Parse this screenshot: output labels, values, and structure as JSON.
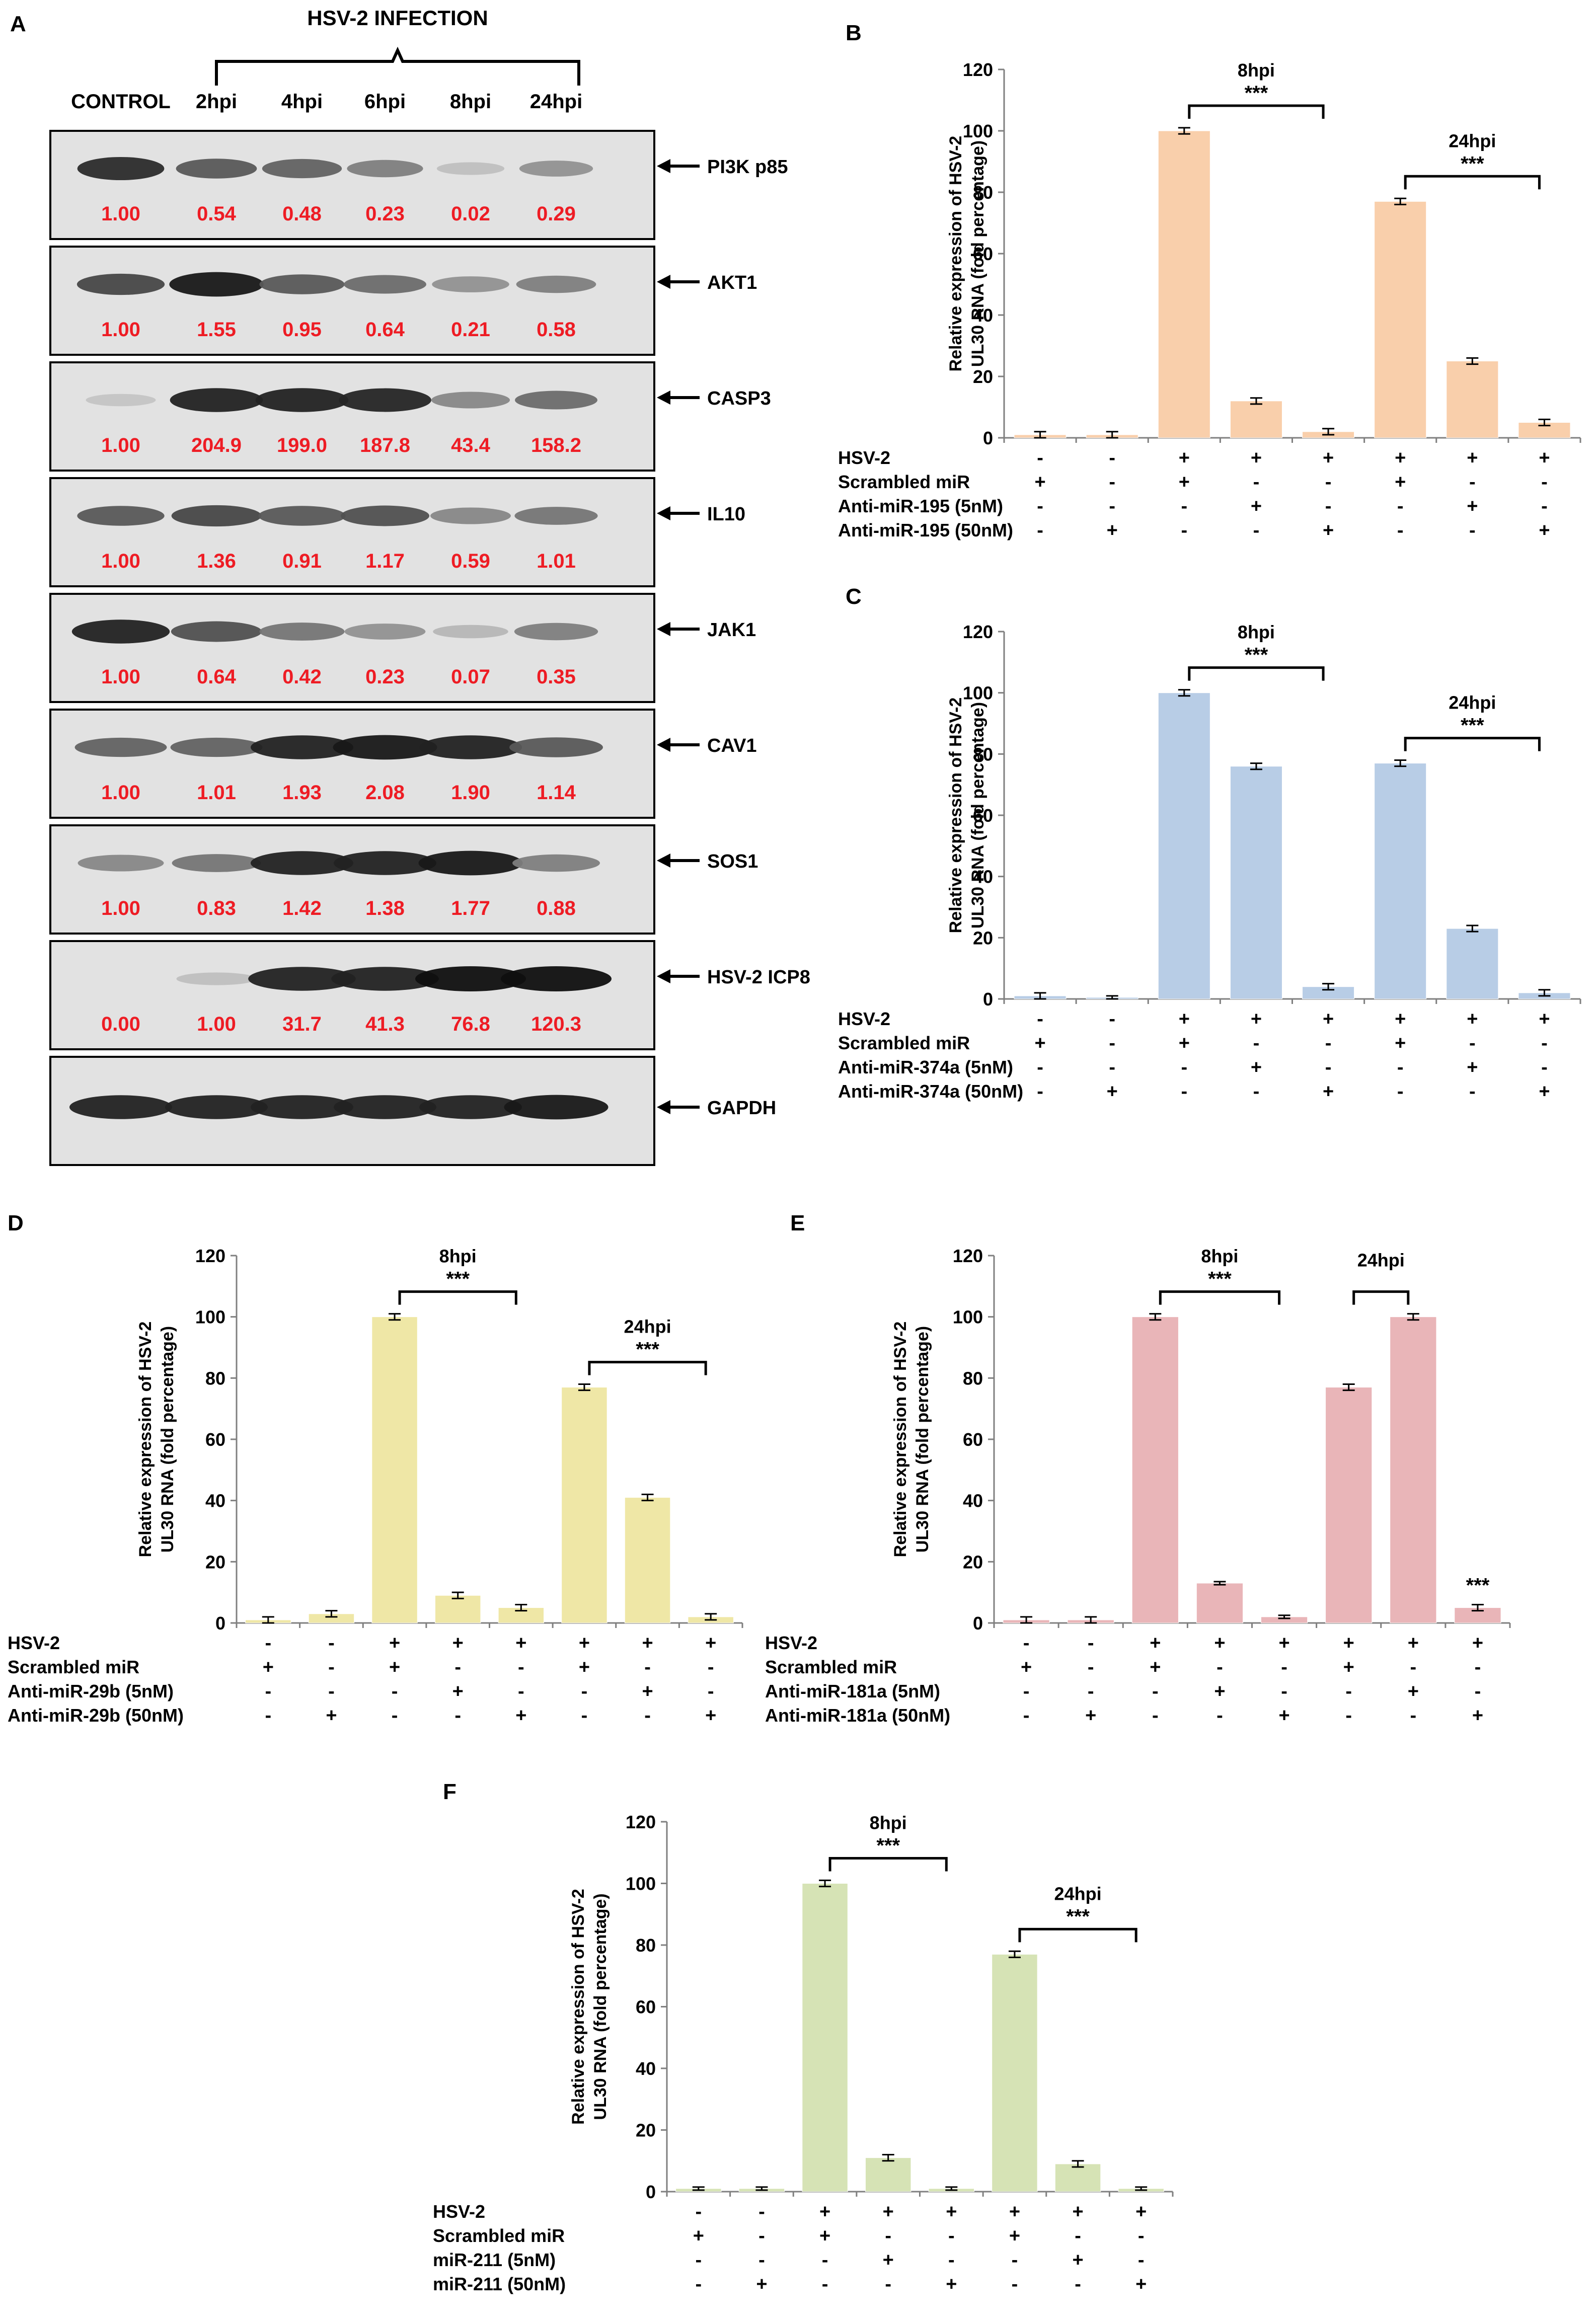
{
  "figure": {
    "panelA": {
      "label": "A",
      "header": "HSV-2 INFECTION",
      "columns": [
        "CONTROL",
        "2hpi",
        "4hpi",
        "6hpi",
        "8hpi",
        "24hpi"
      ],
      "blots": [
        {
          "protein": "PI3K  p85",
          "values": [
            "1.00",
            "0.54",
            "0.48",
            "0.23",
            "0.02",
            "0.29"
          ]
        },
        {
          "protein": "AKT1",
          "values": [
            "1.00",
            "1.55",
            "0.95",
            "0.64",
            "0.21",
            "0.58"
          ]
        },
        {
          "protein": "CASP3",
          "values": [
            "1.00",
            "204.9",
            "199.0",
            "187.8",
            "43.4",
            "158.2"
          ]
        },
        {
          "protein": "IL10",
          "values": [
            "1.00",
            "1.36",
            "0.91",
            "1.17",
            "0.59",
            "1.01"
          ]
        },
        {
          "protein": "JAK1",
          "values": [
            "1.00",
            "0.64",
            "0.42",
            "0.23",
            "0.07",
            "0.35"
          ]
        },
        {
          "protein": "CAV1",
          "values": [
            "1.00",
            "1.01",
            "1.93",
            "2.08",
            "1.90",
            "1.14"
          ]
        },
        {
          "protein": "SOS1",
          "values": [
            "1.00",
            "0.83",
            "1.42",
            "1.38",
            "1.77",
            "0.88"
          ]
        },
        {
          "protein": "HSV-2 ICP8",
          "values": [
            "0.00",
            "1.00",
            "31.7",
            "41.3",
            "76.8",
            "120.3"
          ]
        },
        {
          "protein": "GAPDH",
          "values": []
        }
      ]
    }
  },
  "chart_data": [
    {
      "panel": "B",
      "type": "bar",
      "ylabel": "Relative expression of HSV-2 UL30 RNA (fold percentage)",
      "ylabel_lines": [
        "Relative expression of HSV-2",
        "UL30 RNA (fold percentage)"
      ],
      "ylim": [
        0,
        120
      ],
      "yticks": [
        "0",
        "20",
        "40",
        "60",
        "80",
        "100",
        "120"
      ],
      "values": [
        1,
        1,
        100,
        12,
        2,
        77,
        25,
        5
      ],
      "errors": [
        1,
        1,
        1,
        1,
        1,
        1,
        1,
        1
      ],
      "color": "#f9cfab",
      "conditions": [
        {
          "name": "HSV-2",
          "signs": [
            "-",
            "-",
            "+",
            "+",
            "+",
            "+",
            "+",
            "+"
          ]
        },
        {
          "name": "Scrambled miR",
          "signs": [
            "+",
            "-",
            "+",
            "-",
            "-",
            "+",
            "-",
            "-"
          ]
        },
        {
          "name": "Anti-miR-195 (5nM)",
          "signs": [
            "-",
            "-",
            "-",
            "+",
            "-",
            "-",
            "+",
            "-"
          ]
        },
        {
          "name": "Anti-miR-195 (50nM)",
          "signs": [
            "-",
            "+",
            "-",
            "-",
            "+",
            "-",
            "-",
            "+"
          ]
        }
      ],
      "annotations": [
        {
          "label": "8hpi",
          "stars": "***",
          "from": 2,
          "to": 4
        },
        {
          "label": "24hpi",
          "stars": "***",
          "from": 5,
          "to": 7
        }
      ]
    },
    {
      "panel": "C",
      "type": "bar",
      "ylabel": "Relative expression of HSV-2 UL30 RNA (fold percentage)",
      "ylabel_lines": [
        "Relative expression of HSV-2",
        "UL30 RNA (fold percentage)"
      ],
      "ylim": [
        0,
        120
      ],
      "yticks": [
        "0",
        "20",
        "40",
        "60",
        "80",
        "100",
        "120"
      ],
      "values": [
        1,
        0.5,
        100,
        76,
        4,
        77,
        23,
        2
      ],
      "errors": [
        1,
        0.5,
        1,
        1,
        1,
        1,
        1,
        1
      ],
      "color": "#b8cde6",
      "conditions": [
        {
          "name": "HSV-2",
          "signs": [
            "-",
            "-",
            "+",
            "+",
            "+",
            "+",
            "+",
            "+"
          ]
        },
        {
          "name": "Scrambled miR",
          "signs": [
            "+",
            "-",
            "+",
            "-",
            "-",
            "+",
            "-",
            "-"
          ]
        },
        {
          "name": "Anti-miR-374a (5nM)",
          "signs": [
            "-",
            "-",
            "-",
            "+",
            "-",
            "-",
            "+",
            "-"
          ]
        },
        {
          "name": "Anti-miR-374a (50nM)",
          "signs": [
            "-",
            "+",
            "-",
            "-",
            "+",
            "-",
            "-",
            "+"
          ]
        }
      ],
      "annotations": [
        {
          "label": "8hpi",
          "stars": "***",
          "from": 2,
          "to": 4
        },
        {
          "label": "24hpi",
          "stars": "***",
          "from": 5,
          "to": 7
        }
      ]
    },
    {
      "panel": "D",
      "type": "bar",
      "ylabel": "Relative expression of HSV-2 UL30 RNA (fold percentage)",
      "ylabel_lines": [
        "Relative expression of HSV-2",
        "UL30 RNA (fold percentage)"
      ],
      "ylim": [
        0,
        120
      ],
      "yticks": [
        "0",
        "20",
        "40",
        "60",
        "80",
        "100",
        "120"
      ],
      "values": [
        1,
        3,
        100,
        9,
        5,
        77,
        41,
        2
      ],
      "errors": [
        1,
        1,
        1,
        1,
        1,
        1,
        1,
        1
      ],
      "color": "#efe7a6",
      "conditions": [
        {
          "name": "HSV-2",
          "signs": [
            "-",
            "-",
            "+",
            "+",
            "+",
            "+",
            "+",
            "+"
          ]
        },
        {
          "name": "Scrambled miR",
          "signs": [
            "+",
            "-",
            "+",
            "-",
            "-",
            "+",
            "-",
            "-"
          ]
        },
        {
          "name": "Anti-miR-29b (5nM)",
          "signs": [
            "-",
            "-",
            "-",
            "+",
            "-",
            "-",
            "+",
            "-"
          ]
        },
        {
          "name": "Anti-miR-29b (50nM)",
          "signs": [
            "-",
            "+",
            "-",
            "-",
            "+",
            "-",
            "-",
            "+"
          ]
        }
      ],
      "annotations": [
        {
          "label": "8hpi",
          "stars": "***",
          "from": 2,
          "to": 4
        },
        {
          "label": "24hpi",
          "stars": "***",
          "from": 5,
          "to": 7
        }
      ]
    },
    {
      "panel": "E",
      "type": "bar",
      "ylabel": "Relative expression of HSV-2 UL30 RNA (fold percentage)",
      "ylabel_lines": [
        "Relative expression of HSV-2",
        "UL30 RNA (fold percentage)"
      ],
      "ylim": [
        0,
        120
      ],
      "yticks": [
        "0",
        "20",
        "40",
        "60",
        "80",
        "100",
        "120"
      ],
      "values": [
        1,
        1,
        100,
        13,
        2,
        77,
        100,
        5
      ],
      "errors": [
        1,
        1,
        1,
        0.5,
        0.5,
        1,
        1,
        1
      ],
      "color": "#e9b5b8",
      "conditions": [
        {
          "name": "HSV-2",
          "signs": [
            "-",
            "-",
            "+",
            "+",
            "+",
            "+",
            "+",
            "+"
          ]
        },
        {
          "name": "Scrambled miR",
          "signs": [
            "+",
            "-",
            "+",
            "-",
            "-",
            "+",
            "-",
            "-"
          ]
        },
        {
          "name": "Anti-miR-181a (5nM)",
          "signs": [
            "-",
            "-",
            "-",
            "+",
            "-",
            "-",
            "+",
            "-"
          ]
        },
        {
          "name": "Anti-miR-181a (50nM)",
          "signs": [
            "-",
            "+",
            "-",
            "-",
            "+",
            "-",
            "-",
            "+"
          ]
        }
      ],
      "annotations": [
        {
          "label": "8hpi",
          "stars": "***",
          "from": 2,
          "to": 4
        },
        {
          "label": "24hpi",
          "stars": "",
          "from": 5,
          "to": 6
        }
      ],
      "bar_stars": [
        {
          "index": 7,
          "stars": "***"
        }
      ]
    },
    {
      "panel": "F",
      "type": "bar",
      "ylabel": "Relative expression of HSV-2 UL30 RNA (fold percentage)",
      "ylabel_lines": [
        "Relative expression of HSV-2",
        "UL30 RNA (fold percentage)"
      ],
      "ylim": [
        0,
        120
      ],
      "yticks": [
        "0",
        "20",
        "40",
        "60",
        "80",
        "100",
        "120"
      ],
      "values": [
        1,
        1,
        100,
        11,
        1,
        77,
        9,
        1
      ],
      "errors": [
        0.5,
        0.5,
        1,
        1,
        0.5,
        1,
        1,
        0.5
      ],
      "color": "#d6e3b5",
      "conditions": [
        {
          "name": "HSV-2",
          "signs": [
            "-",
            "-",
            "+",
            "+",
            "+",
            "+",
            "+",
            "+"
          ]
        },
        {
          "name": "Scrambled miR",
          "signs": [
            "+",
            "-",
            "+",
            "-",
            "-",
            "+",
            "-",
            "-"
          ]
        },
        {
          "name": "miR-211 (5nM)",
          "signs": [
            "-",
            "-",
            "-",
            "+",
            "-",
            "-",
            "+",
            "-"
          ]
        },
        {
          "name": "miR-211 (50nM)",
          "signs": [
            "-",
            "+",
            "-",
            "-",
            "+",
            "-",
            "-",
            "+"
          ]
        }
      ],
      "annotations": [
        {
          "label": "8hpi",
          "stars": "***",
          "from": 2,
          "to": 4
        },
        {
          "label": "24hpi",
          "stars": "***",
          "from": 5,
          "to": 7
        }
      ]
    }
  ]
}
